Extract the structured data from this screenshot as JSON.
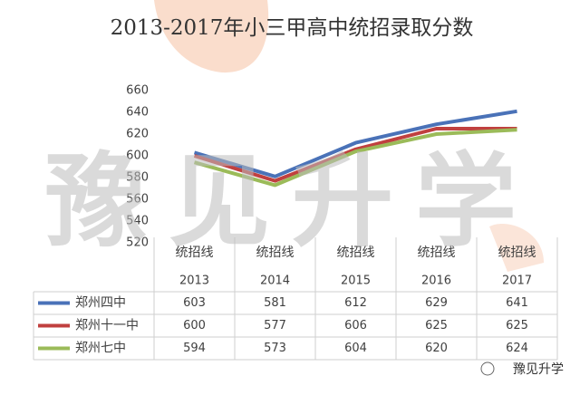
{
  "chart_data": {
    "type": "line",
    "title": "2013-2017年小三甲高中统招录取分数",
    "categories": [
      [
        "统招线",
        "2013"
      ],
      [
        "统招线",
        "2014"
      ],
      [
        "统招线",
        "2015"
      ],
      [
        "统招线",
        "2016"
      ],
      [
        "统招线",
        "2017"
      ]
    ],
    "series": [
      {
        "name": "郑州四中",
        "color": "#4a72b8",
        "values": [
          603,
          581,
          612,
          629,
          641
        ]
      },
      {
        "name": "郑州十一中",
        "color": "#c0403f",
        "values": [
          600,
          577,
          606,
          625,
          625
        ]
      },
      {
        "name": "郑州七中",
        "color": "#9bbb59",
        "values": [
          594,
          573,
          604,
          620,
          624
        ]
      }
    ],
    "ylim": [
      520,
      660
    ],
    "yticks": [
      520,
      540,
      560,
      580,
      600,
      620,
      640,
      660
    ],
    "grid": false,
    "data_table": true
  },
  "watermark": "豫见升学",
  "footer": "豫见升学"
}
